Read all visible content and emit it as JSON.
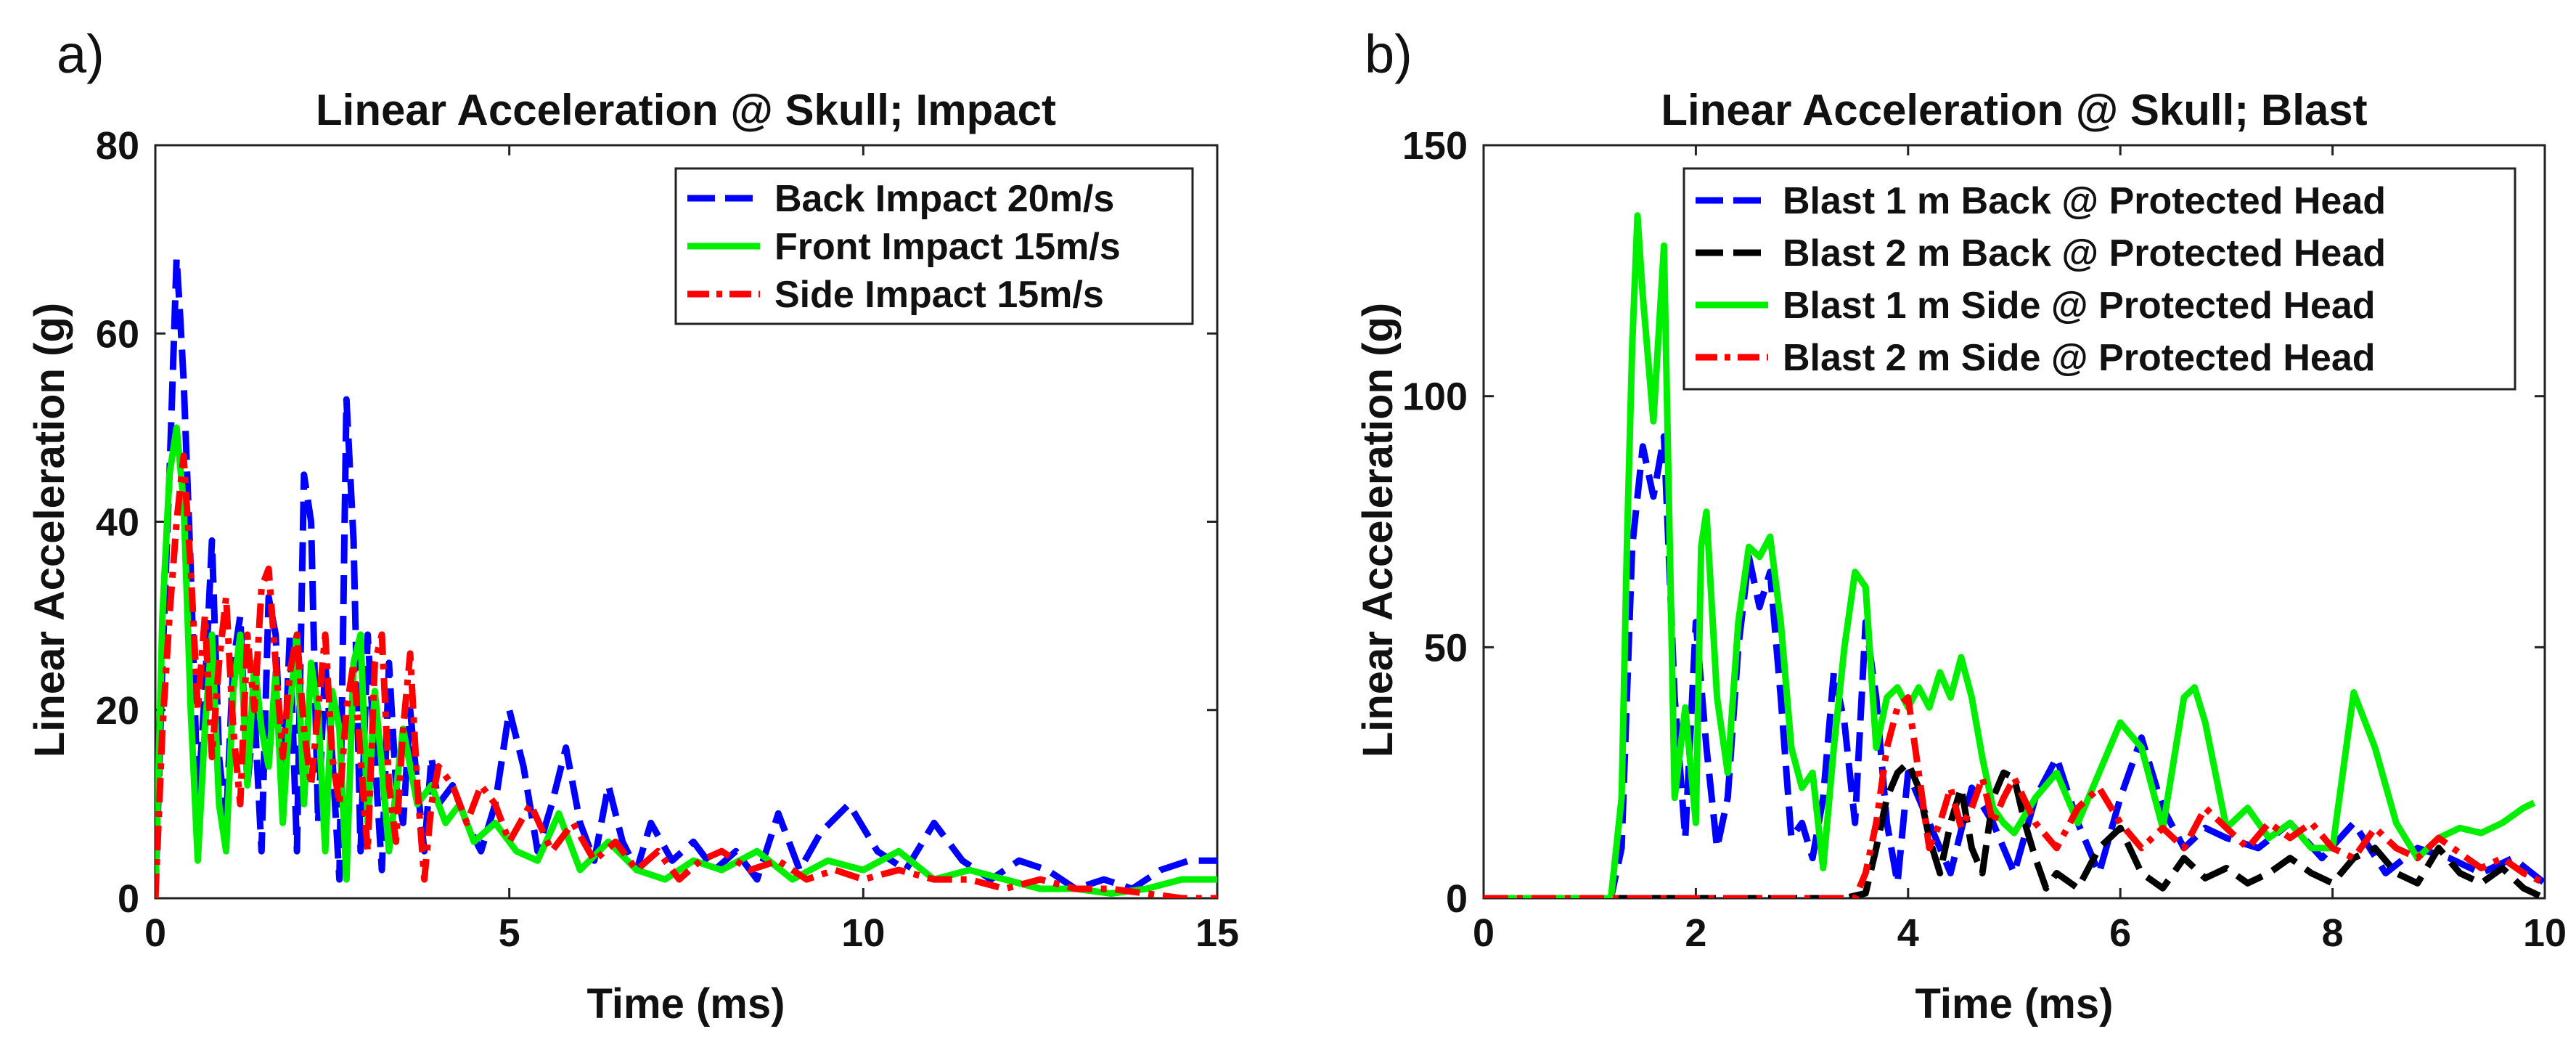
{
  "chart_data": [
    {
      "panel": "a)",
      "type": "line",
      "title": "Linear Acceleration @ Skull; Impact",
      "xlabel": "Time (ms)",
      "ylabel": "Linear Acceleration (g)",
      "xlim": [
        0,
        15
      ],
      "ylim": [
        0,
        80
      ],
      "xticks": [
        0,
        5,
        10,
        15
      ],
      "yticks": [
        0,
        20,
        40,
        60,
        80
      ],
      "legend_position": "top-right",
      "series": [
        {
          "name": "Back Impact 20m/s",
          "color": "#0000ff",
          "style": "dashed",
          "x": [
            0,
            0.1,
            0.2,
            0.3,
            0.35,
            0.4,
            0.5,
            0.6,
            0.7,
            0.8,
            0.9,
            1.0,
            1.1,
            1.2,
            1.3,
            1.4,
            1.5,
            1.6,
            1.7,
            1.8,
            1.9,
            2.0,
            2.1,
            2.2,
            2.3,
            2.4,
            2.5,
            2.6,
            2.7,
            2.8,
            2.9,
            3.0,
            3.1,
            3.2,
            3.3,
            3.4,
            3.5,
            3.6,
            3.7,
            3.8,
            3.9,
            4.0,
            4.2,
            4.4,
            4.6,
            4.8,
            5.0,
            5.2,
            5.4,
            5.6,
            5.8,
            6.0,
            6.2,
            6.4,
            6.6,
            6.8,
            7.0,
            7.3,
            7.6,
            7.9,
            8.2,
            8.5,
            8.8,
            9.1,
            9.4,
            9.8,
            10.2,
            10.6,
            11.0,
            11.4,
            11.8,
            12.2,
            12.6,
            13.0,
            13.4,
            13.8,
            14.2,
            14.6,
            15.0
          ],
          "values": [
            0,
            25,
            45,
            68,
            62,
            55,
            35,
            10,
            22,
            38,
            15,
            8,
            25,
            30,
            12,
            20,
            5,
            32,
            28,
            10,
            28,
            5,
            45,
            40,
            8,
            25,
            15,
            2,
            53,
            38,
            5,
            28,
            15,
            3,
            25,
            12,
            8,
            20,
            12,
            5,
            15,
            10,
            12,
            8,
            5,
            10,
            20,
            14,
            5,
            10,
            16,
            8,
            4,
            12,
            6,
            3,
            8,
            4,
            6,
            3,
            5,
            2,
            9,
            3,
            7,
            10,
            5,
            3,
            8,
            4,
            2,
            4,
            3,
            1,
            2,
            1,
            3,
            4,
            4
          ]
        },
        {
          "name": "Front Impact 15m/s",
          "color": "#00ee00",
          "style": "solid",
          "x": [
            0,
            0.1,
            0.2,
            0.3,
            0.4,
            0.5,
            0.6,
            0.7,
            0.8,
            0.9,
            1.0,
            1.1,
            1.2,
            1.3,
            1.4,
            1.5,
            1.6,
            1.7,
            1.8,
            1.9,
            2.0,
            2.1,
            2.2,
            2.3,
            2.4,
            2.5,
            2.6,
            2.7,
            2.8,
            2.9,
            3.0,
            3.1,
            3.2,
            3.3,
            3.5,
            3.7,
            3.9,
            4.1,
            4.3,
            4.5,
            4.8,
            5.1,
            5.4,
            5.7,
            6.0,
            6.4,
            6.8,
            7.2,
            7.6,
            8.0,
            8.5,
            9.0,
            9.5,
            10.0,
            10.5,
            11.0,
            11.5,
            12.0,
            12.5,
            13.0,
            13.5,
            14.0,
            14.5,
            15.0
          ],
          "values": [
            0,
            30,
            45,
            50,
            42,
            20,
            4,
            18,
            28,
            10,
            5,
            22,
            28,
            12,
            25,
            18,
            14,
            24,
            8,
            20,
            28,
            10,
            25,
            20,
            5,
            22,
            18,
            2,
            25,
            28,
            8,
            22,
            14,
            5,
            18,
            10,
            12,
            8,
            10,
            6,
            8,
            5,
            4,
            9,
            3,
            6,
            3,
            2,
            4,
            3,
            5,
            2,
            4,
            3,
            5,
            2,
            3,
            2,
            1,
            1,
            0.5,
            1,
            2,
            2
          ]
        },
        {
          "name": "Side Impact 15m/s",
          "color": "#ff0000",
          "style": "dashdot",
          "x": [
            0,
            0.1,
            0.2,
            0.3,
            0.4,
            0.5,
            0.6,
            0.7,
            0.8,
            0.9,
            1.0,
            1.1,
            1.2,
            1.3,
            1.4,
            1.5,
            1.6,
            1.7,
            1.8,
            1.9,
            2.0,
            2.1,
            2.2,
            2.3,
            2.4,
            2.5,
            2.6,
            2.7,
            2.8,
            2.9,
            3.0,
            3.1,
            3.2,
            3.3,
            3.4,
            3.5,
            3.6,
            3.7,
            3.8,
            3.9,
            4.0,
            4.2,
            4.4,
            4.6,
            4.8,
            5.0,
            5.3,
            5.6,
            5.9,
            6.2,
            6.5,
            6.8,
            7.1,
            7.4,
            7.7,
            8.0,
            8.4,
            8.8,
            9.2,
            9.6,
            10.0,
            10.5,
            11.0,
            11.5,
            12.0,
            12.5,
            13.0,
            13.5,
            14.0,
            14.5,
            15.0
          ],
          "values": [
            0,
            18,
            30,
            40,
            47,
            35,
            20,
            30,
            15,
            25,
            32,
            18,
            10,
            28,
            20,
            33,
            35,
            25,
            15,
            24,
            28,
            18,
            12,
            20,
            28,
            15,
            10,
            20,
            25,
            15,
            5,
            25,
            28,
            12,
            6,
            18,
            26,
            12,
            2,
            10,
            14,
            12,
            8,
            12,
            10,
            6,
            10,
            5,
            8,
            4,
            6,
            3,
            5,
            2,
            4,
            5,
            3,
            4,
            2,
            3,
            2,
            3,
            2,
            2,
            1,
            2,
            1,
            1,
            0.5,
            0,
            0
          ]
        }
      ]
    },
    {
      "panel": "b)",
      "type": "line",
      "title": "Linear Acceleration @ Skull; Blast",
      "xlabel": "Time (ms)",
      "ylabel": "Linear Acceleration (g)",
      "xlim": [
        0,
        10
      ],
      "ylim": [
        0,
        150
      ],
      "xticks": [
        0,
        2,
        4,
        6,
        8,
        10
      ],
      "yticks": [
        0,
        50,
        100,
        150
      ],
      "legend_position": "top-right",
      "series": [
        {
          "name": "Blast 1 m Back @ Protected Head",
          "color": "#0000ff",
          "style": "dashed",
          "x": [
            0,
            0.5,
            1.0,
            1.2,
            1.3,
            1.4,
            1.5,
            1.6,
            1.7,
            1.8,
            1.9,
            2.0,
            2.1,
            2.2,
            2.3,
            2.4,
            2.5,
            2.6,
            2.7,
            2.8,
            2.9,
            3.0,
            3.1,
            3.2,
            3.3,
            3.4,
            3.5,
            3.6,
            3.7,
            3.8,
            3.9,
            4.0,
            4.2,
            4.4,
            4.6,
            4.8,
            5.0,
            5.2,
            5.4,
            5.6,
            5.8,
            6.0,
            6.2,
            6.4,
            6.6,
            6.8,
            7.0,
            7.3,
            7.6,
            7.9,
            8.2,
            8.5,
            8.8,
            9.1,
            9.4,
            9.7,
            10.0
          ],
          "values": [
            0,
            0,
            0,
            0,
            10,
            70,
            90,
            80,
            92,
            40,
            12,
            55,
            30,
            10,
            20,
            50,
            68,
            58,
            65,
            40,
            12,
            15,
            8,
            20,
            45,
            35,
            15,
            55,
            40,
            15,
            3,
            25,
            15,
            5,
            22,
            15,
            5,
            20,
            28,
            15,
            5,
            20,
            32,
            18,
            10,
            14,
            12,
            10,
            15,
            8,
            15,
            5,
            10,
            8,
            5,
            8,
            3
          ]
        },
        {
          "name": "Blast 2 m Back @ Protected Head",
          "color": "#000000",
          "style": "dashed",
          "x": [
            0,
            1.0,
            2.0,
            3.0,
            3.4,
            3.6,
            3.7,
            3.8,
            3.9,
            4.0,
            4.1,
            4.2,
            4.3,
            4.4,
            4.5,
            4.6,
            4.7,
            4.8,
            4.9,
            5.0,
            5.1,
            5.2,
            5.3,
            5.4,
            5.6,
            5.8,
            6.0,
            6.2,
            6.4,
            6.6,
            6.8,
            7.0,
            7.2,
            7.4,
            7.6,
            7.8,
            8.0,
            8.2,
            8.4,
            8.6,
            8.8,
            9.0,
            9.2,
            9.4,
            9.6,
            9.8,
            10.0
          ],
          "values": [
            0,
            0,
            0,
            0,
            0,
            1,
            10,
            20,
            25,
            27,
            22,
            12,
            5,
            15,
            22,
            10,
            5,
            20,
            25,
            24,
            15,
            8,
            2,
            5,
            2,
            10,
            14,
            5,
            2,
            8,
            4,
            6,
            3,
            5,
            8,
            5,
            3,
            8,
            10,
            5,
            3,
            10,
            5,
            3,
            6,
            2,
            0
          ]
        },
        {
          "name": "Blast 1 m Side @ Protected Head",
          "color": "#00ee00",
          "style": "solid",
          "x": [
            0,
            0.5,
            1.0,
            1.2,
            1.3,
            1.35,
            1.4,
            1.45,
            1.5,
            1.6,
            1.7,
            1.8,
            1.9,
            2.0,
            2.05,
            2.1,
            2.2,
            2.3,
            2.4,
            2.5,
            2.6,
            2.7,
            2.8,
            2.9,
            3.0,
            3.1,
            3.2,
            3.3,
            3.4,
            3.5,
            3.6,
            3.7,
            3.8,
            3.9,
            4.0,
            4.1,
            4.2,
            4.3,
            4.4,
            4.5,
            4.6,
            4.7,
            4.8,
            4.9,
            5.0,
            5.2,
            5.4,
            5.6,
            5.8,
            6.0,
            6.2,
            6.4,
            6.6,
            6.7,
            6.8,
            7.0,
            7.2,
            7.4,
            7.6,
            7.8,
            8.0,
            8.2,
            8.4,
            8.6,
            8.8,
            9.0,
            9.2,
            9.4,
            9.6,
            9.8,
            9.9
          ],
          "values": [
            0,
            0,
            0,
            0,
            20,
            70,
            110,
            136,
            120,
            95,
            130,
            20,
            38,
            15,
            70,
            77,
            40,
            25,
            55,
            70,
            68,
            72,
            55,
            30,
            22,
            25,
            6,
            30,
            50,
            65,
            62,
            30,
            40,
            42,
            38,
            42,
            38,
            45,
            40,
            48,
            40,
            28,
            18,
            15,
            13,
            20,
            25,
            15,
            25,
            35,
            30,
            14,
            40,
            42,
            35,
            14,
            18,
            12,
            15,
            10,
            10,
            41,
            30,
            15,
            8,
            12,
            14,
            13,
            15,
            18,
            19
          ]
        },
        {
          "name": "Blast 2 m Side @ Protected Head",
          "color": "#ff0000",
          "style": "dashdot",
          "x": [
            0,
            1.0,
            2.0,
            3.0,
            3.5,
            3.6,
            3.7,
            3.8,
            3.9,
            4.0,
            4.1,
            4.2,
            4.3,
            4.4,
            4.5,
            4.6,
            4.7,
            4.8,
            4.9,
            5.0,
            5.2,
            5.4,
            5.6,
            5.8,
            6.0,
            6.2,
            6.4,
            6.6,
            6.8,
            7.0,
            7.2,
            7.4,
            7.6,
            7.8,
            8.0,
            8.2,
            8.4,
            8.6,
            8.8,
            9.0,
            9.2,
            9.4,
            9.6,
            9.8,
            10.0
          ],
          "values": [
            0,
            0,
            0,
            0,
            0,
            5,
            15,
            30,
            38,
            40,
            25,
            10,
            15,
            22,
            14,
            18,
            24,
            15,
            20,
            24,
            15,
            10,
            18,
            22,
            15,
            10,
            14,
            10,
            18,
            14,
            10,
            15,
            12,
            15,
            10,
            8,
            14,
            10,
            8,
            12,
            9,
            6,
            8,
            5,
            3
          ]
        }
      ]
    }
  ]
}
